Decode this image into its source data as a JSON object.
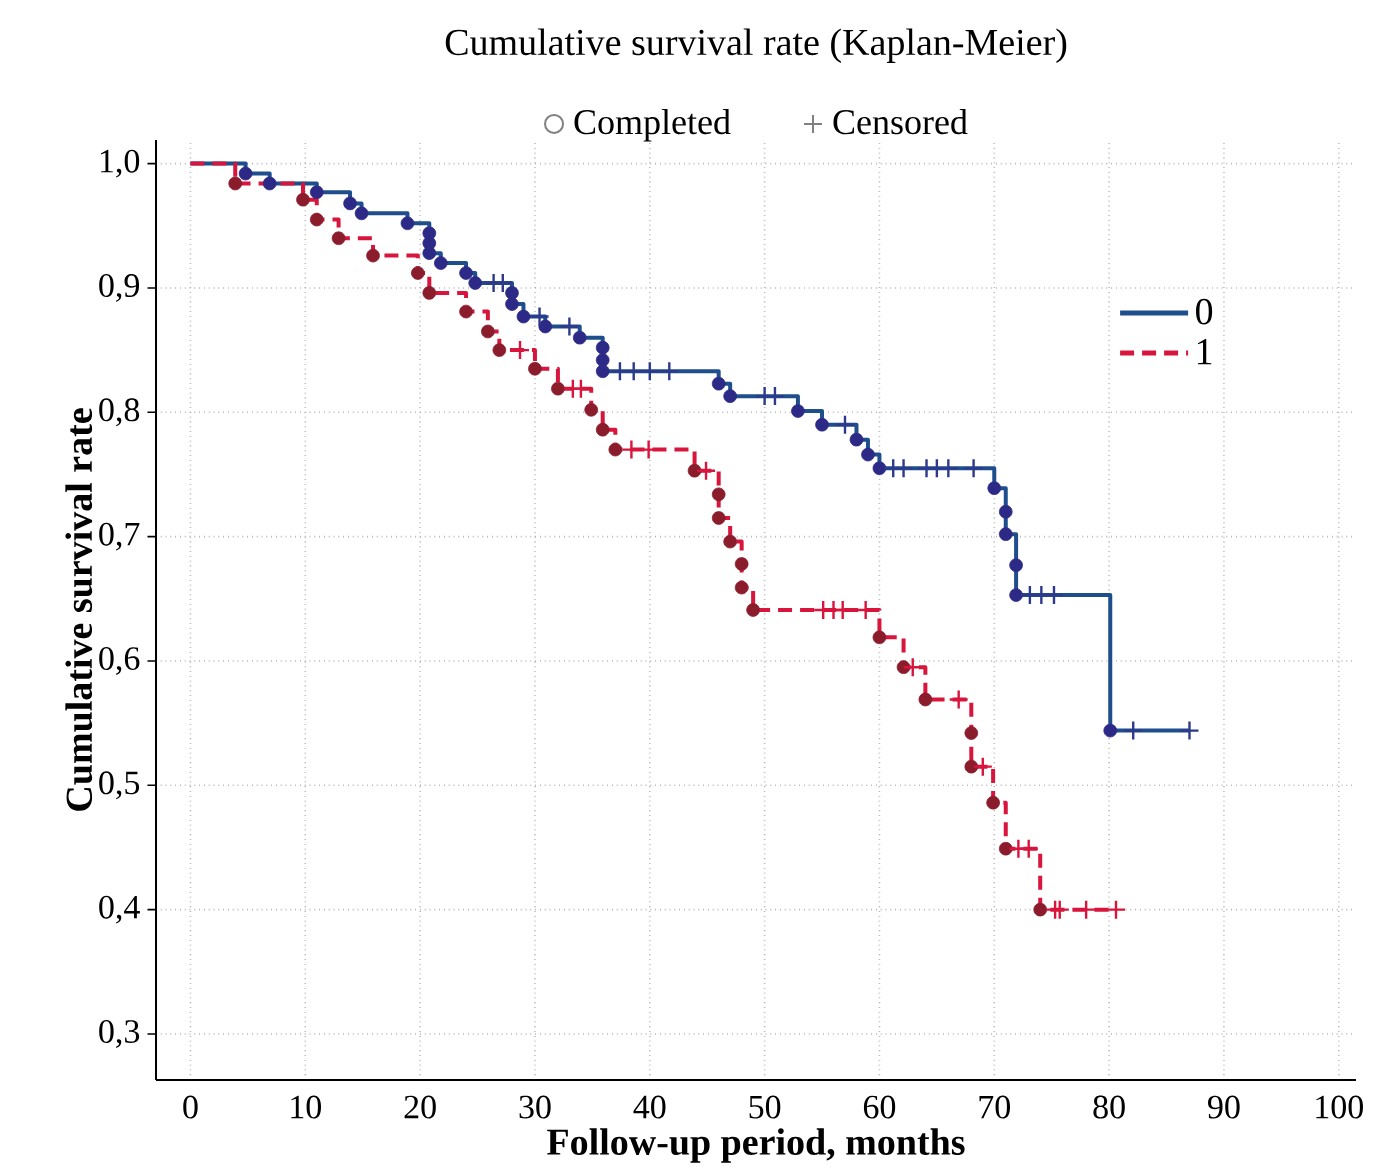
{
  "chart_data": {
    "type": "step",
    "title": "Cumulative survival rate (Kaplan-Meier)",
    "xlabel": "Follow-up period, months",
    "ylabel": "Cumulative survival rate",
    "annotations": [
      "Completed",
      "Censored"
    ],
    "xlim": [
      -3,
      101.5
    ],
    "ylim": [
      0.263,
      1.019
    ],
    "xticks": [
      0,
      10,
      20,
      30,
      40,
      50,
      60,
      70,
      80,
      90,
      100
    ],
    "yticks": [
      {
        "value": 0.3,
        "label": "0,3"
      },
      {
        "value": 0.4,
        "label": "0,4"
      },
      {
        "value": 0.5,
        "label": "0,5"
      },
      {
        "value": 0.6,
        "label": "0,6"
      },
      {
        "value": 0.7,
        "label": "0,7"
      },
      {
        "value": 0.8,
        "label": "0,8"
      },
      {
        "value": 0.9,
        "label": "0,9"
      },
      {
        "value": 1.0,
        "label": "1,0"
      }
    ],
    "grid": true,
    "legend": "top right",
    "series": [
      {
        "name": "0",
        "color": "#1f4e8c",
        "line_style": "solid",
        "marker": "none",
        "x": [
          0,
          4.8,
          6.9,
          11.0,
          13.9,
          14.9,
          18.9,
          20.8,
          21.8,
          24.0,
          24.8,
          28.0,
          29.0,
          30.9,
          33.9,
          35.9,
          46.0,
          47.0,
          52.9,
          55.0,
          58.0,
          59.0,
          60.0,
          70.0,
          71.0,
          71.9,
          80.1,
          87.0
        ],
        "values": [
          1.0,
          0.992,
          0.984,
          0.977,
          0.968,
          0.96,
          0.952,
          0.928,
          0.92,
          0.912,
          0.904,
          0.887,
          0.877,
          0.869,
          0.86,
          0.833,
          0.823,
          0.813,
          0.801,
          0.79,
          0.778,
          0.766,
          0.755,
          0.739,
          0.702,
          0.653,
          0.544,
          0.544
        ]
      },
      {
        "name": "1",
        "color": "#d8153c",
        "line_style": "dashed",
        "marker": "none",
        "x": [
          0,
          3.9,
          9.8,
          11.0,
          12.9,
          15.9,
          19.8,
          20.8,
          24.0,
          25.9,
          26.9,
          30.0,
          32.0,
          34.9,
          35.9,
          37.0,
          43.9,
          46.0,
          47.0,
          48.0,
          49.0,
          60.0,
          62.1,
          64.0,
          68.0,
          69.9,
          71.0,
          74.0,
          80.6
        ],
        "values": [
          1.0,
          0.984,
          0.971,
          0.955,
          0.94,
          0.926,
          0.912,
          0.896,
          0.881,
          0.865,
          0.85,
          0.835,
          0.819,
          0.802,
          0.786,
          0.77,
          0.753,
          0.715,
          0.696,
          0.659,
          0.641,
          0.619,
          0.595,
          0.569,
          0.515,
          0.486,
          0.449,
          0.4,
          0.4
        ]
      },
      {
        "type": "scatter",
        "color": "#2d2a87",
        "marker": "circle",
        "x": [
          4.8,
          6.9,
          11.0,
          13.9,
          14.9,
          18.9,
          20.8,
          20.8,
          20.8,
          21.8,
          24.0,
          24.8,
          28.0,
          28.0,
          29.0,
          30.9,
          33.9,
          35.9,
          35.9,
          35.9,
          46.0,
          47.0,
          52.9,
          55.0,
          58.0,
          59.0,
          60.0,
          70.0,
          71.0,
          71.0,
          71.9,
          71.9,
          80.1
        ],
        "values": [
          0.992,
          0.984,
          0.977,
          0.968,
          0.96,
          0.952,
          0.944,
          0.936,
          0.928,
          0.92,
          0.912,
          0.904,
          0.896,
          0.887,
          0.877,
          0.869,
          0.86,
          0.852,
          0.842,
          0.833,
          0.823,
          0.813,
          0.801,
          0.79,
          0.778,
          0.766,
          0.755,
          0.739,
          0.72,
          0.702,
          0.677,
          0.653,
          0.544
        ]
      },
      {
        "type": "scatter",
        "color": "#2d3a8c",
        "marker": "cross",
        "x": [
          26.4,
          27.2,
          30.4,
          33.0,
          37.4,
          38.6,
          40.0,
          41.7,
          50.0,
          50.9,
          57.0,
          61.2,
          62.1,
          64.1,
          65.0,
          66.0,
          68.2,
          73.1,
          74.1,
          75.2,
          82.1,
          87.0
        ],
        "values": [
          0.904,
          0.904,
          0.877,
          0.869,
          0.833,
          0.833,
          0.833,
          0.833,
          0.813,
          0.813,
          0.79,
          0.755,
          0.755,
          0.755,
          0.755,
          0.755,
          0.755,
          0.653,
          0.653,
          0.653,
          0.544,
          0.544
        ]
      },
      {
        "type": "scatter",
        "color": "#8a1c2c",
        "marker": "circle",
        "x": [
          3.9,
          9.8,
          11.0,
          12.9,
          15.9,
          19.8,
          20.8,
          24.0,
          25.9,
          26.9,
          30.0,
          32.0,
          34.9,
          35.9,
          37.0,
          43.9,
          46.0,
          46.0,
          47.0,
          48.0,
          48.0,
          49.0,
          60.0,
          62.1,
          64.0,
          68.0,
          68.0,
          69.9,
          71.0,
          74.0
        ],
        "values": [
          0.984,
          0.971,
          0.955,
          0.94,
          0.926,
          0.912,
          0.896,
          0.881,
          0.865,
          0.85,
          0.835,
          0.819,
          0.802,
          0.786,
          0.77,
          0.753,
          0.734,
          0.715,
          0.696,
          0.678,
          0.659,
          0.641,
          0.619,
          0.595,
          0.569,
          0.542,
          0.515,
          0.486,
          0.449,
          0.4
        ]
      },
      {
        "type": "scatter",
        "color": "#d8153c",
        "marker": "cross",
        "x": [
          28.7,
          33.3,
          34.0,
          38.4,
          39.9,
          44.9,
          55.1,
          56.0,
          56.8,
          58.8,
          62.9,
          66.9,
          69.0,
          72.1,
          73.0,
          75.3,
          75.7,
          78.0,
          80.6
        ],
        "values": [
          0.85,
          0.819,
          0.819,
          0.77,
          0.77,
          0.753,
          0.641,
          0.641,
          0.641,
          0.641,
          0.595,
          0.569,
          0.515,
          0.449,
          0.449,
          0.4,
          0.4,
          0.4,
          0.4
        ]
      }
    ]
  }
}
